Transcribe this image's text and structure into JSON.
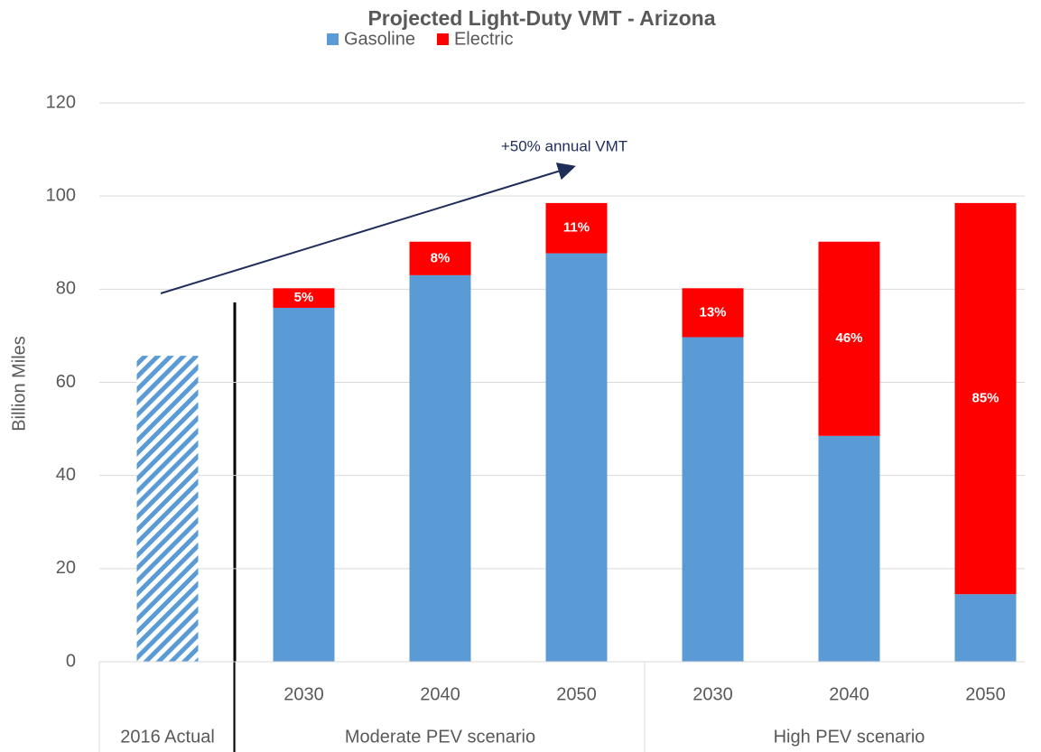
{
  "chart_data": {
    "type": "stacked_bar",
    "title": "Projected Light-Duty VMT - Arizona",
    "y_label": "Billion Miles",
    "groups": [
      {
        "label": "2016 Actual",
        "categories": [
          null
        ]
      },
      {
        "label": "Moderate PEV scenario",
        "categories": [
          "2030",
          "2040",
          "2050"
        ]
      },
      {
        "label": "High PEV scenario",
        "categories": [
          "2030",
          "2040",
          "2050"
        ]
      }
    ],
    "series": [
      {
        "color": "#5b9bd5",
        "pattern": "hatch",
        "values": [
          65.7,
          null,
          null,
          null,
          null,
          null,
          null
        ]
      },
      {
        "name": "Gasoline",
        "color": "#5b9bd5",
        "values": [
          null,
          76,
          83,
          87.7,
          69.7,
          48.5,
          14.5
        ]
      },
      {
        "name": "Electric",
        "color": "#ff0000",
        "values": [
          null,
          4.2,
          7.2,
          10.8,
          10.5,
          41.7,
          84.0
        ]
      }
    ],
    "share_labels": [
      null,
      "5%",
      "8%",
      "11%",
      "13%",
      "46%",
      "85%"
    ],
    "annotation": "+50% annual VMT",
    "ylim": [
      0,
      120
    ],
    "yticks": [
      0,
      20,
      40,
      60,
      80,
      100,
      120
    ],
    "grid": true,
    "legend": "top"
  }
}
